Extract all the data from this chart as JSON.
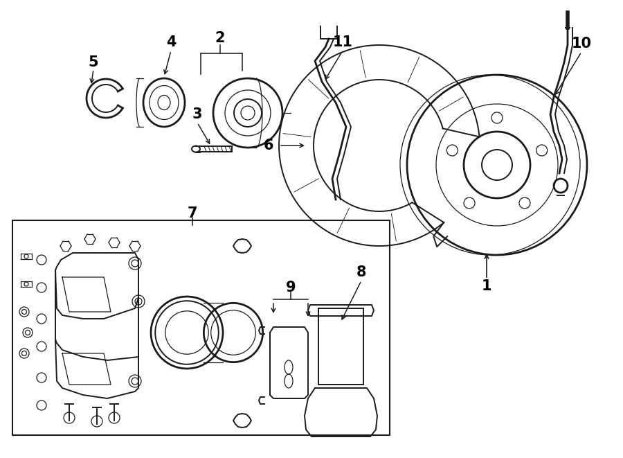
{
  "bg_color": "#ffffff",
  "line_color": "#1a1a1a",
  "figsize": [
    9.0,
    6.61
  ],
  "dpi": 100,
  "lw": 1.4,
  "lw_thick": 2.0,
  "lw_thin": 0.9,
  "label_fontsize": 15
}
